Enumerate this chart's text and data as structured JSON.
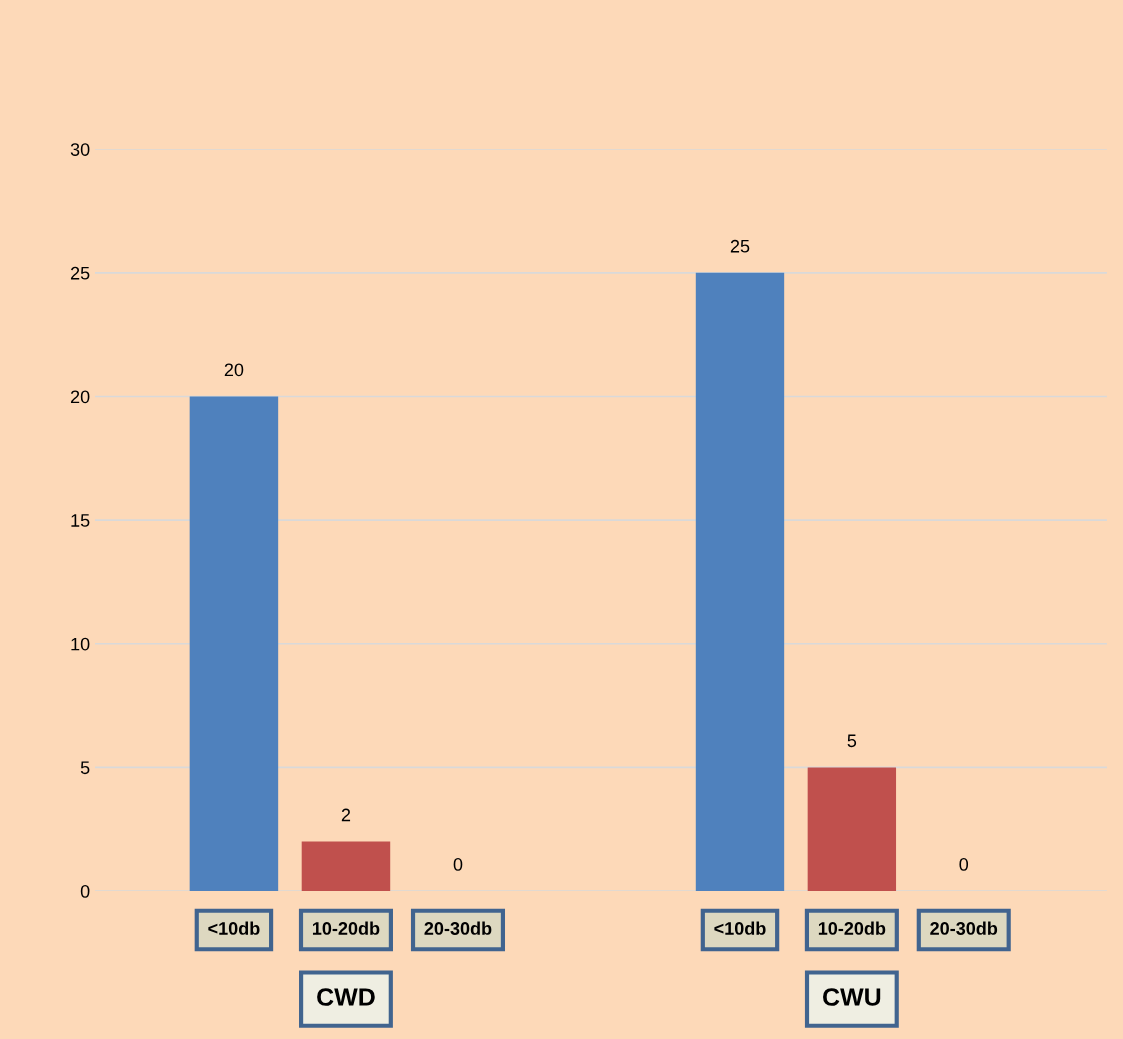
{
  "chart_data": [
    {
      "type": "bar",
      "xlabel": "CWD",
      "categories": [
        "<10db",
        "10-20db",
        "20-30db"
      ],
      "values": [
        20,
        2,
        0
      ],
      "colors": [
        "#4f81bd",
        "#c0504d",
        "#9bbb59"
      ],
      "ylim": [
        0,
        30
      ],
      "yticks": [
        0,
        5,
        10,
        15,
        20,
        25,
        30
      ],
      "grid": "y",
      "data_labels": true
    },
    {
      "type": "bar",
      "xlabel": "CWU",
      "categories": [
        "<10db",
        "10-20db",
        "20-30db"
      ],
      "values": [
        25,
        5,
        0
      ],
      "colors": [
        "#4f81bd",
        "#c0504d",
        "#9bbb59"
      ],
      "ylim": [
        0,
        30
      ],
      "yticks": [
        0,
        5,
        10,
        15,
        20,
        25,
        30
      ],
      "grid": "y",
      "data_labels": true,
      "tick_labels": "x"
    }
  ]
}
